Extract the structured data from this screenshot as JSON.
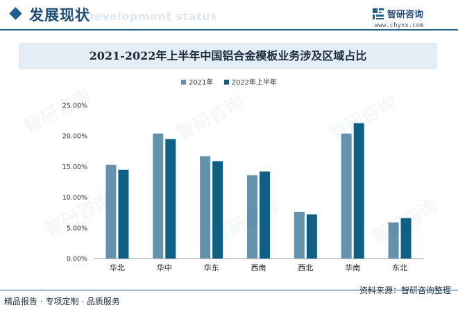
{
  "header": {
    "title": "发展现状",
    "watermark_text": "Development status"
  },
  "brand": {
    "name": "智研咨询",
    "url": "www.chyxx.com",
    "watermark_text": "智研咨询"
  },
  "footer": {
    "slogan": "精品报告 · 专项定制 · 品质服务",
    "source": "资料来源：智研咨询整理"
  },
  "colors": {
    "series_2021": "#6591ac",
    "series_2022h1": "#0f5f85",
    "accent": "#1f5f8b",
    "title_band": "#e2edf5"
  },
  "chart_data": {
    "type": "bar",
    "title": "2021-2022年上半年中国铝合金模板业务涉及区域占比",
    "xlabel": "",
    "ylabel": "",
    "categories": [
      "华北",
      "华中",
      "华东",
      "西南",
      "西北",
      "华南",
      "东北"
    ],
    "series": [
      {
        "name": "2021年",
        "color": "#6591ac",
        "values": [
          15.3,
          20.4,
          16.7,
          13.6,
          7.6,
          20.4,
          5.9
        ]
      },
      {
        "name": "2022年上半年",
        "color": "#0f5f85",
        "values": [
          14.5,
          19.5,
          15.9,
          14.2,
          7.2,
          22.1,
          6.6
        ]
      }
    ],
    "ylim": [
      0,
      25
    ],
    "yticks": [
      "0.00%",
      "5.00%",
      "10.00%",
      "15.00%",
      "20.00%",
      "25.00%"
    ],
    "ytick_values": [
      0,
      5,
      10,
      15,
      20,
      25
    ],
    "grid": false,
    "legend_position": "top-center"
  }
}
